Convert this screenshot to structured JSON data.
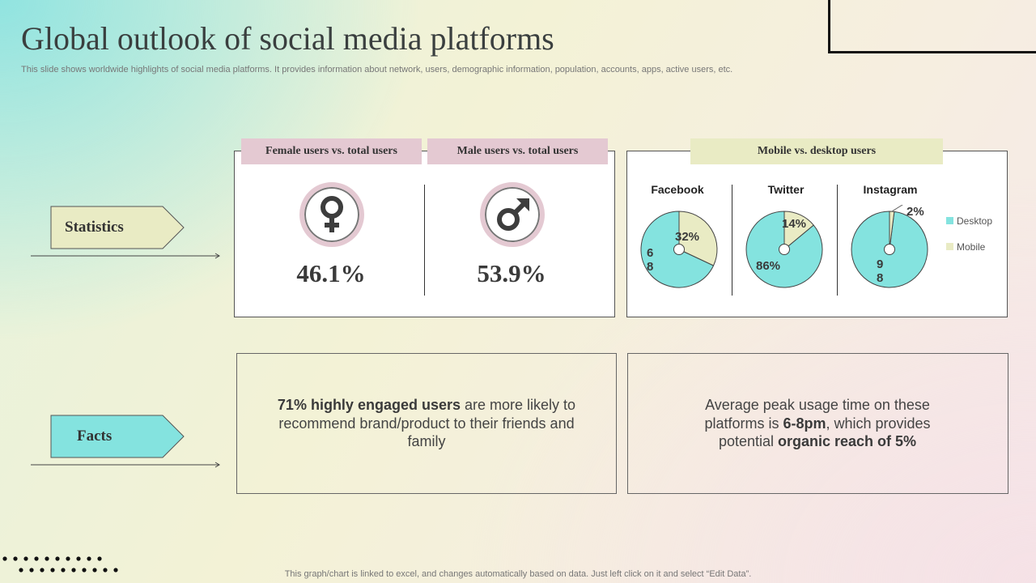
{
  "title": "Global outlook of social media platforms",
  "subtitle": "This slide shows worldwide highlights of social media platforms. It provides information about network, users, demographic information, population, accounts, apps, active users, etc.",
  "rows": {
    "statistics": "Statistics",
    "facts": "Facts"
  },
  "colors": {
    "teal": "#84e3df",
    "cream": "#e9ebc4",
    "pink": "#e4c9d2"
  },
  "gender": {
    "female_label": "Female users vs. total users",
    "male_label": "Male users vs. total users",
    "female_value": "46.1%",
    "male_value": "53.9%",
    "female_icon": "female-symbol-icon",
    "male_icon": "male-symbol-icon"
  },
  "devices": {
    "label": "Mobile vs. desktop users"
  },
  "chart_data": {
    "type": "pie",
    "legend": [
      "Desktop",
      "Mobile"
    ],
    "legend_position": "right",
    "pies": [
      {
        "name": "Facebook",
        "desktop": 68,
        "mobile": 32,
        "desktop_label": "6\n8",
        "mobile_label": "32%"
      },
      {
        "name": "Twitter",
        "desktop": 86,
        "mobile": 14,
        "desktop_label": "86%",
        "mobile_label": "14%"
      },
      {
        "name": "Instagram",
        "desktop": 98,
        "mobile": 2,
        "desktop_label": "9\n8",
        "mobile_label": "2%"
      }
    ]
  },
  "facts": {
    "left": {
      "bold": "71% highly engaged users",
      "rest": " are more likely to recommend brand/product to their friends and family"
    },
    "right": {
      "part1": "Average peak usage time on these platforms is ",
      "bold1": "6-8pm",
      "part2": ", which provides potential ",
      "bold2": "organic reach of 5%"
    }
  },
  "footer": "This graph/chart is linked to excel,  and changes automatically based on data. Just left click on it and select “Edit Data”."
}
